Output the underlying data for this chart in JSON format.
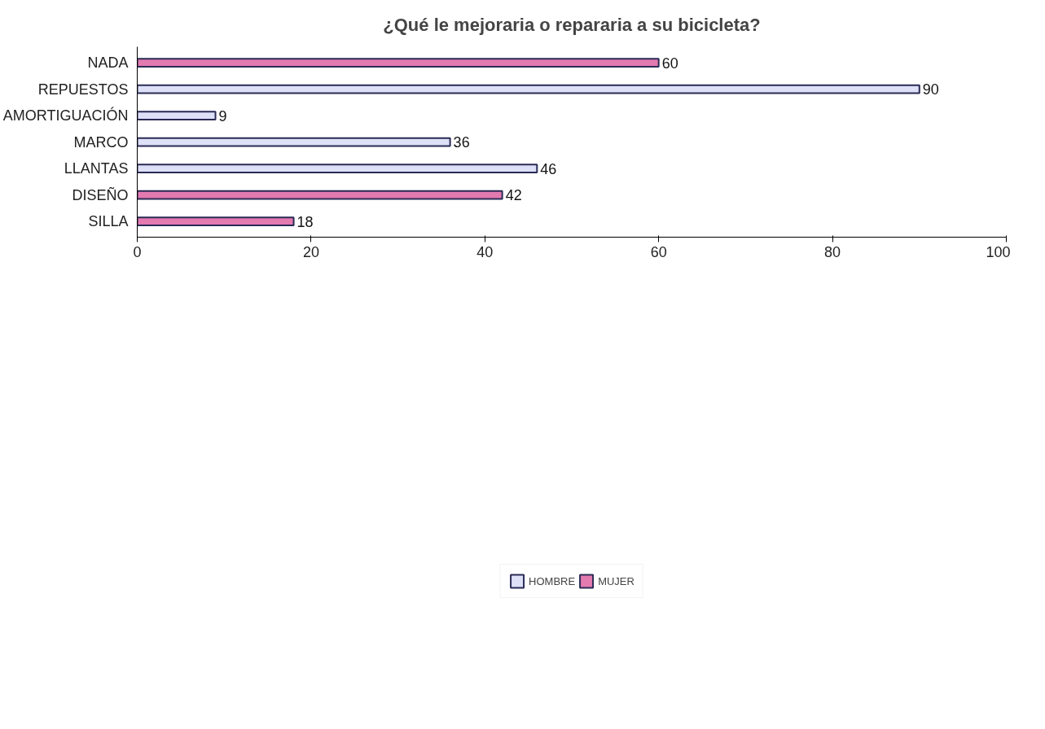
{
  "chart_data": {
    "type": "bar",
    "orientation": "horizontal",
    "title": "¿Qué le mejoraria o repararia a su bicicleta?",
    "categories": [
      "NADA",
      "REPUESTOS",
      "AMORTIGUACIÓN",
      "MARCO",
      "LLANTAS",
      "DISEÑO",
      "SILLA"
    ],
    "series": [
      {
        "name": "HOMBRE",
        "color": "#dde0f7",
        "values": [
          null,
          90,
          9,
          36,
          46,
          null,
          null
        ]
      },
      {
        "name": "MUJER",
        "color": "#e37ab0",
        "values": [
          60,
          null,
          null,
          null,
          null,
          42,
          18
        ]
      }
    ],
    "xlim": [
      0,
      100
    ],
    "xticks": [
      0,
      20,
      40,
      60,
      80,
      100
    ],
    "data_labels": true,
    "legend": "bottom"
  }
}
